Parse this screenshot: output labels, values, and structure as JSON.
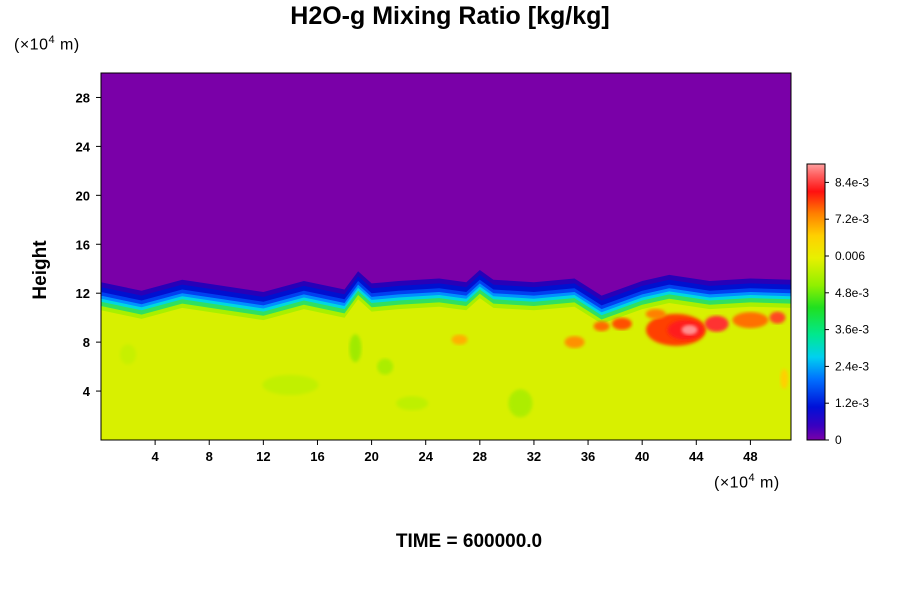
{
  "chart_data": {
    "type": "heatmap",
    "title": "H2O-g Mixing Ratio [kg/kg]",
    "ylabel": "Height",
    "y_unit_prefix": "(×10",
    "y_unit_exp": "4",
    "y_unit_suffix": " m)",
    "x_unit_prefix": "(×10",
    "x_unit_exp": "4",
    "x_unit_suffix": " m)",
    "xlim": [
      0,
      51
    ],
    "ylim": [
      0,
      30
    ],
    "x_ticks": [
      "4",
      "8",
      "12",
      "16",
      "20",
      "24",
      "28",
      "32",
      "36",
      "40",
      "44",
      "48"
    ],
    "y_ticks": [
      "4",
      "8",
      "12",
      "16",
      "20",
      "24",
      "28"
    ],
    "colorbar": {
      "range": [
        0,
        0.009
      ],
      "tick_labels": [
        "0",
        "1.2e-3",
        "2.4e-3",
        "3.6e-3",
        "4.8e-3",
        "0.006",
        "7.2e-3",
        "8.4e-3"
      ],
      "tick_values": [
        0,
        0.0012,
        0.0024,
        0.0036,
        0.0048,
        0.006,
        0.0072,
        0.0084
      ]
    },
    "field_summary": {
      "dry_aloft_value": 0,
      "moist_layer_value": 0.0062,
      "moist_layer_top_height": 11
    },
    "footer": "TIME = 600000.0"
  },
  "colors": {
    "dry": "#7a00a8",
    "moist": "#d8f000",
    "moist_green": "#9af000",
    "max": "#ff3030"
  }
}
